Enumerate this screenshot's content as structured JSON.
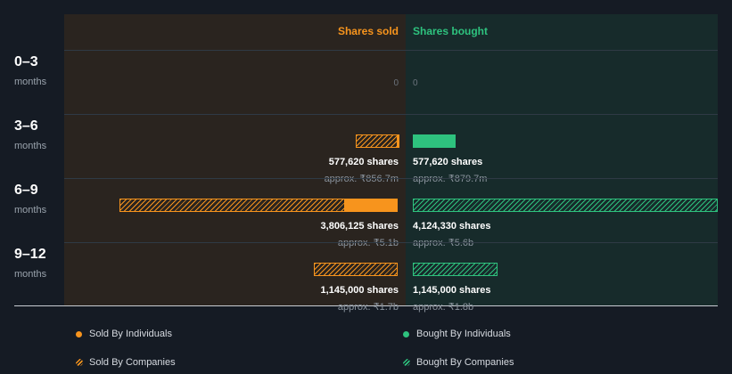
{
  "chart_data": {
    "type": "bar",
    "headers": {
      "sold": "Shares sold",
      "bought": "Shares bought"
    },
    "unit_label": "months",
    "periods": [
      {
        "label": "0–3",
        "sold": {
          "individuals": 0,
          "companies": 0,
          "text": "0",
          "approx": ""
        },
        "bought": {
          "individuals": 0,
          "companies": 0,
          "text": "0",
          "approx": ""
        }
      },
      {
        "label": "3–6",
        "sold": {
          "individuals": 6000,
          "companies": 571620,
          "text": "577,620 shares",
          "approx": "approx. ₹856.7m"
        },
        "bought": {
          "individuals": 577620,
          "companies": 0,
          "text": "577,620 shares",
          "approx": "approx. ₹879.7m"
        }
      },
      {
        "label": "6–9",
        "sold": {
          "individuals": 720000,
          "companies": 3086125,
          "text": "3,806,125 shares",
          "approx": "approx. ₹5.1b"
        },
        "bought": {
          "individuals": 0,
          "companies": 4124330,
          "text": "4,124,330 shares",
          "approx": "approx. ₹5.6b"
        }
      },
      {
        "label": "9–12",
        "sold": {
          "individuals": 0,
          "companies": 1145000,
          "text": "1,145,000 shares",
          "approx": "approx. ₹1.7b"
        },
        "bought": {
          "individuals": 0,
          "companies": 1145000,
          "text": "1,145,000 shares",
          "approx": "approx. ₹1.8b"
        }
      }
    ],
    "max_value": 4124330,
    "legend": {
      "sold_individuals": "Sold By Individuals",
      "sold_companies": "Sold By Companies",
      "bought_individuals": "Bought By Individuals",
      "bought_companies": "Bought By Companies"
    },
    "colors": {
      "sold": "#f7941d",
      "bought": "#2ec27e"
    }
  }
}
